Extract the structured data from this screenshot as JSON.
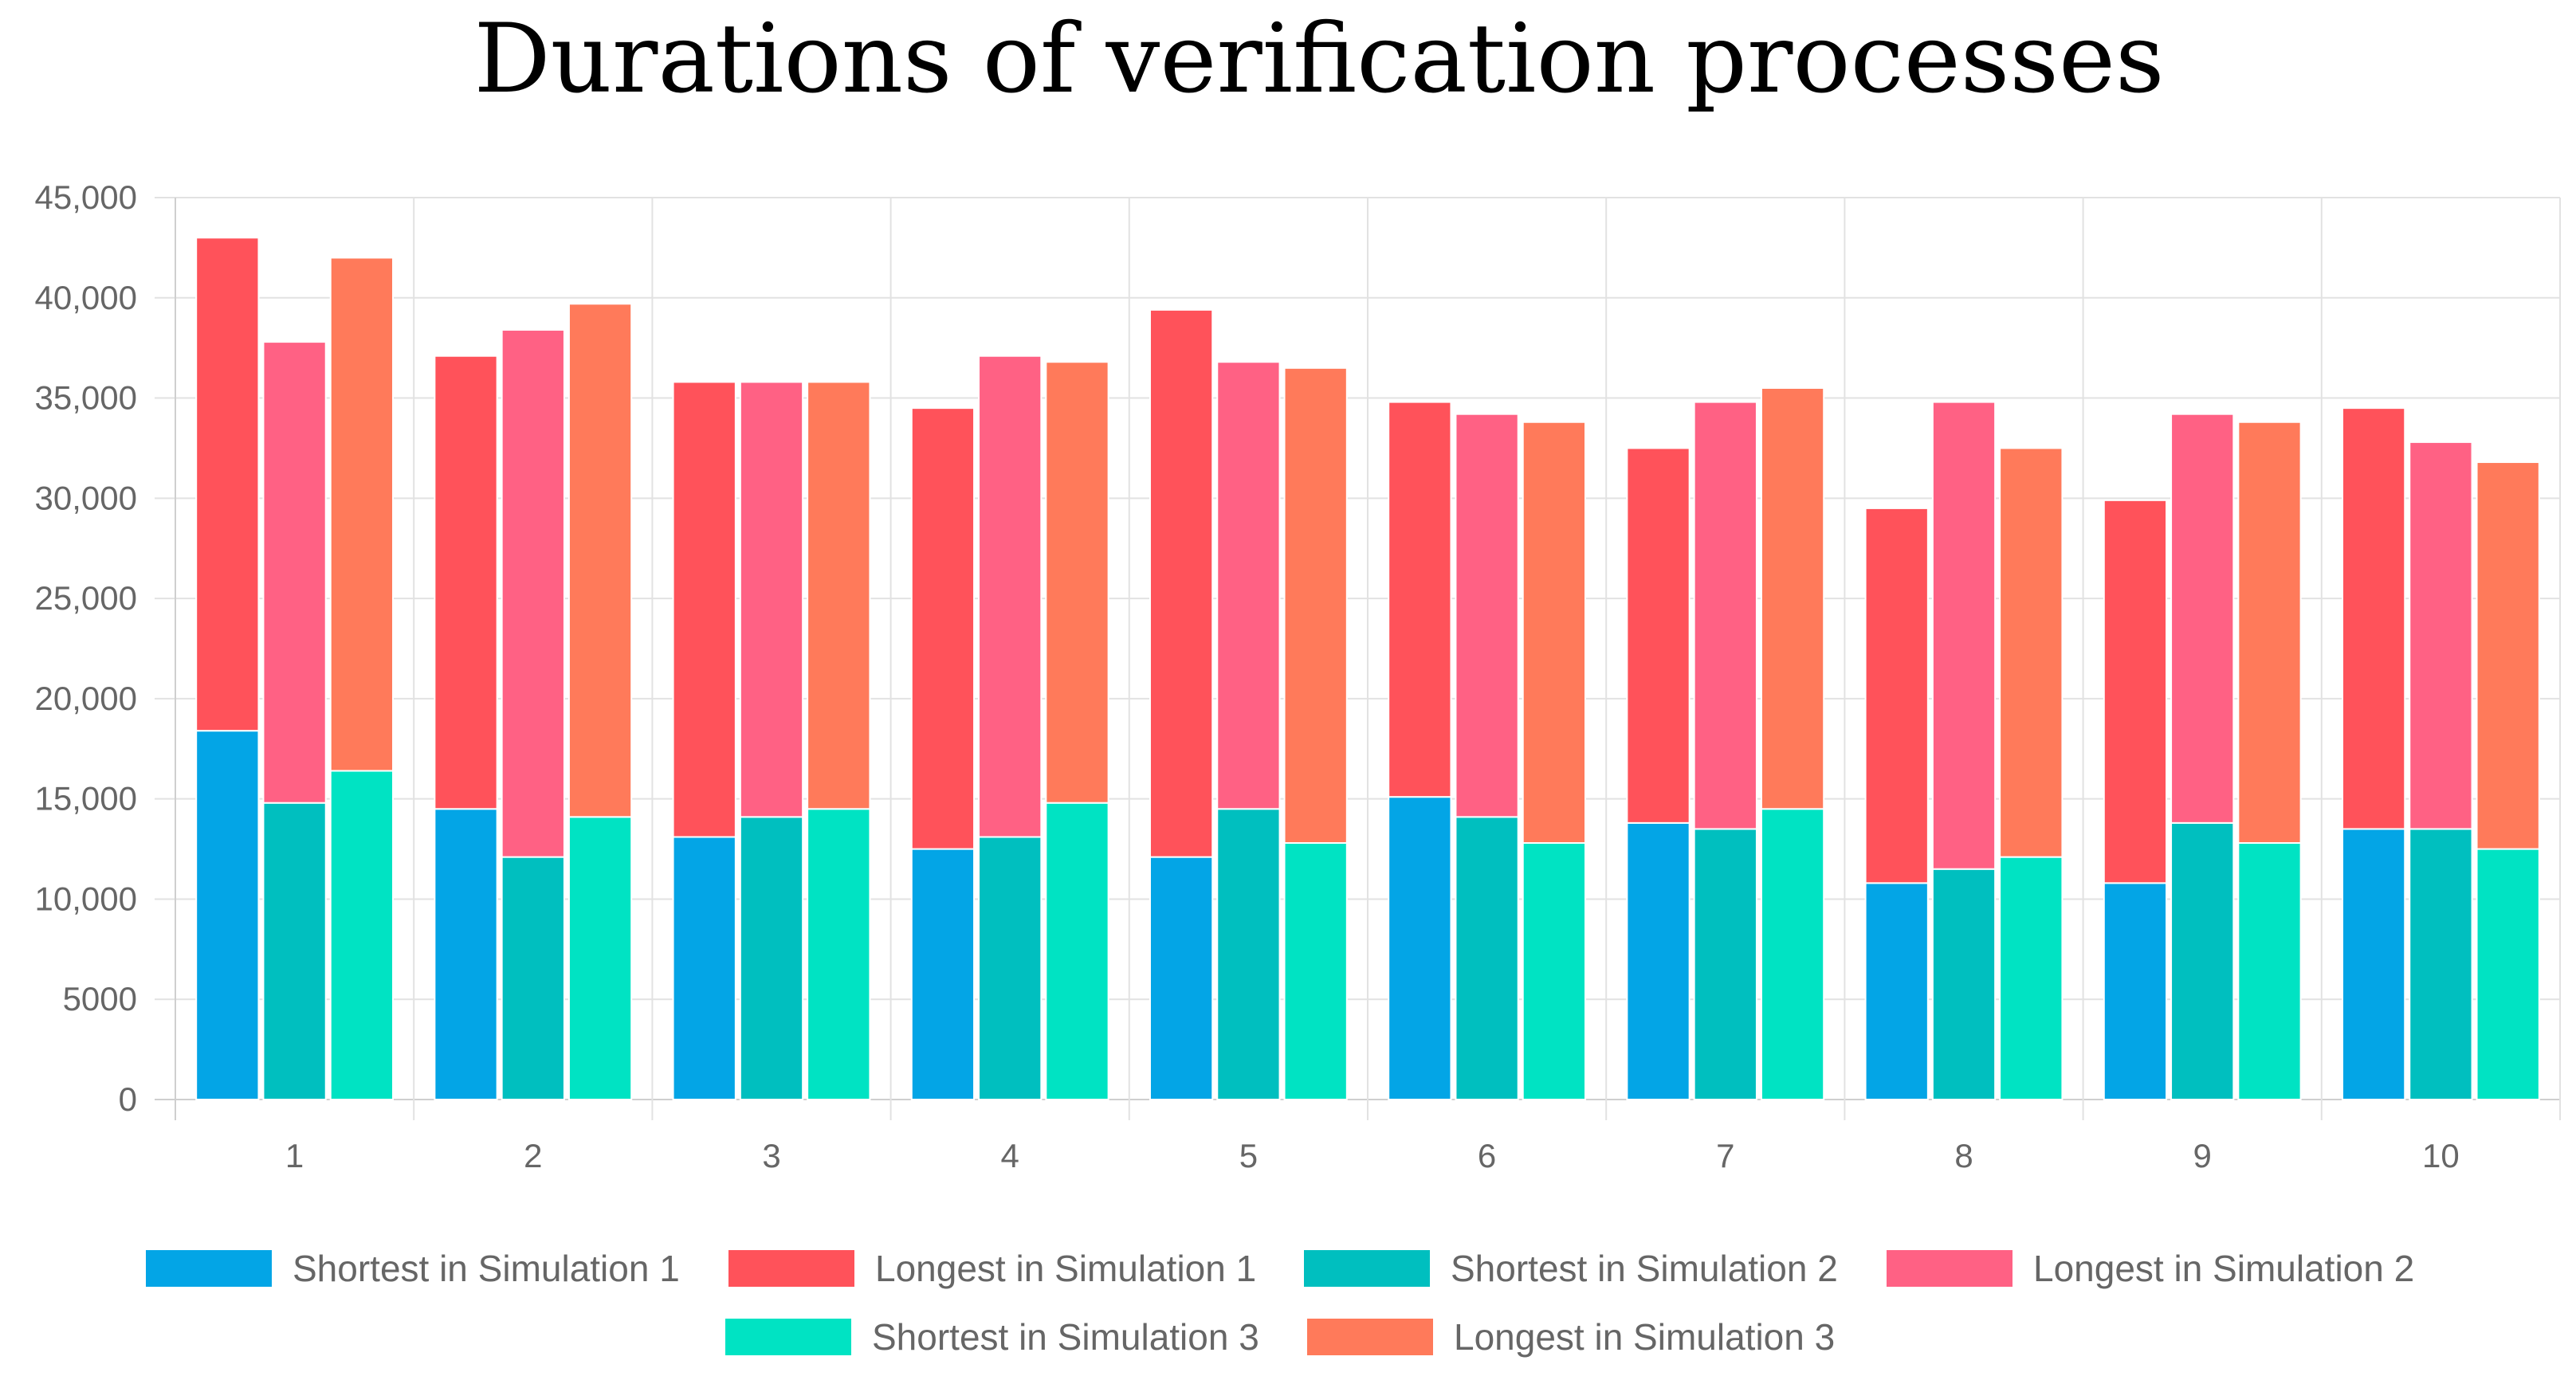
{
  "chart_data": {
    "type": "bar",
    "title": "Durations of verification processes",
    "categories": [
      "1",
      "2",
      "3",
      "4",
      "5",
      "6",
      "7",
      "8",
      "9",
      "10"
    ],
    "ylim": [
      0,
      45000
    ],
    "yticks": [
      0,
      5000,
      10000,
      15000,
      20000,
      25000,
      30000,
      35000,
      40000,
      45000
    ],
    "ytick_labels": [
      "0",
      "5000",
      "10,000",
      "15,000",
      "20,000",
      "25,000",
      "30,000",
      "35,000",
      "40,000",
      "45,000"
    ],
    "grid": true,
    "legend_position": "bottom",
    "stacks": [
      {
        "name": "Simulation 1",
        "shortest": {
          "name": "Shortest in Simulation 1",
          "color": "#03a5e6",
          "values": [
            18400,
            14500,
            13100,
            12500,
            12100,
            15100,
            13800,
            10800,
            10800,
            13500
          ]
        },
        "longest": {
          "name": "Longest in Simulation 1",
          "color": "#ff525a",
          "values": [
            43000,
            37100,
            35800,
            34500,
            39400,
            34800,
            32500,
            29500,
            29900,
            34500
          ]
        }
      },
      {
        "name": "Simulation 2",
        "shortest": {
          "name": "Shortest in Simulation 2",
          "color": "#00bfbf",
          "values": [
            14800,
            12100,
            14100,
            13100,
            14500,
            14100,
            13500,
            11500,
            13800,
            13500
          ]
        },
        "longest": {
          "name": "Longest in Simulation 2",
          "color": "#ff6184",
          "values": [
            37800,
            38400,
            35800,
            37100,
            36800,
            34200,
            34800,
            34800,
            34200,
            32800
          ]
        }
      },
      {
        "name": "Simulation 3",
        "shortest": {
          "name": "Shortest in Simulation 3",
          "color": "#00e3c3",
          "values": [
            16400,
            14100,
            14500,
            14800,
            12800,
            12800,
            14500,
            12100,
            12800,
            12500
          ]
        },
        "longest": {
          "name": "Longest in Simulation 3",
          "color": "#ff7a5a",
          "values": [
            42000,
            39700,
            35800,
            36800,
            36500,
            33800,
            35500,
            32500,
            33800,
            31800
          ]
        }
      }
    ],
    "legend": [
      {
        "label": "Shortest in Simulation 1",
        "color": "#03a5e6"
      },
      {
        "label": "Longest in Simulation 1",
        "color": "#ff525a"
      },
      {
        "label": "Shortest in Simulation 2",
        "color": "#00bfbf"
      },
      {
        "label": "Longest in Simulation 2",
        "color": "#ff6184"
      },
      {
        "label": "Shortest in Simulation 3",
        "color": "#00e3c3"
      },
      {
        "label": "Longest in Simulation 3",
        "color": "#ff7a5a"
      }
    ]
  }
}
